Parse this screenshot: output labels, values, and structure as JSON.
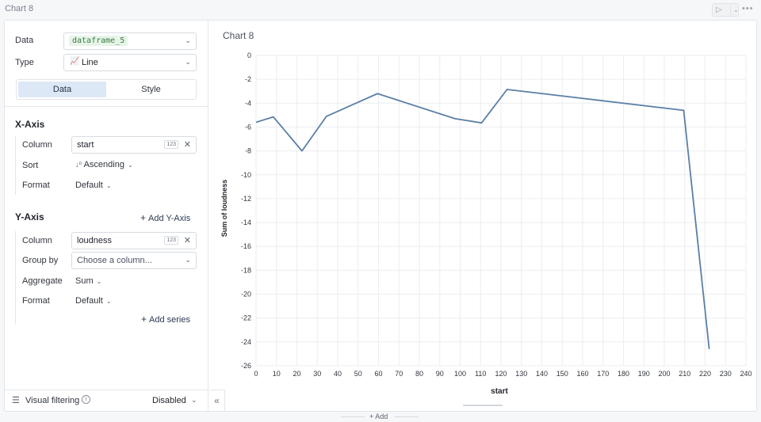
{
  "cell": {
    "title": "Chart 8"
  },
  "config": {
    "data_label": "Data",
    "data_value": "dataframe_5",
    "type_label": "Type",
    "type_value": "Line",
    "tabs": [
      {
        "label": "Data"
      },
      {
        "label": "Style"
      }
    ]
  },
  "x_axis": {
    "title": "X-Axis",
    "column_label": "Column",
    "column_value": "start",
    "column_type_badge": "123",
    "sort_label": "Sort",
    "sort_value": "Ascending",
    "format_label": "Format",
    "format_value": "Default"
  },
  "y_axis": {
    "title": "Y-Axis",
    "add_label": "Add Y-Axis",
    "column_label": "Column",
    "column_value": "loudness",
    "column_type_badge": "123",
    "group_label": "Group by",
    "group_placeholder": "Choose a column...",
    "aggregate_label": "Aggregate",
    "aggregate_value": "Sum",
    "format_label": "Format",
    "format_value": "Default",
    "add_series_label": "Add series"
  },
  "visual_filtering": {
    "label": "Visual filtering",
    "value": "Disabled"
  },
  "add_cell": {
    "label": "Add"
  },
  "colors": {
    "series": "#5b7fa6",
    "accent": "#dde8f6"
  },
  "chart_data": {
    "type": "line",
    "title": "Chart 8",
    "xlabel": "start",
    "ylabel": "Sum of loudness",
    "xlim": [
      0,
      240
    ],
    "ylim": [
      -26,
      0
    ],
    "x_ticks": [
      0,
      10,
      20,
      30,
      40,
      50,
      60,
      70,
      80,
      90,
      100,
      110,
      120,
      130,
      140,
      150,
      160,
      170,
      180,
      190,
      200,
      210,
      220,
      230,
      240
    ],
    "y_ticks": [
      0,
      -2,
      -4,
      -6,
      -8,
      -10,
      -12,
      -14,
      -16,
      -18,
      -20,
      -22,
      -24,
      -26
    ],
    "grid": true,
    "series": [
      {
        "x": [
          0,
          8.5,
          22.5,
          34.5,
          59.5,
          97.5,
          110.5,
          123,
          160,
          209.5,
          222
        ],
        "values": [
          -5.6,
          -5.15,
          -8.0,
          -5.1,
          -3.2,
          -5.3,
          -5.65,
          -2.85,
          -3.6,
          -4.6,
          -24.6
        ]
      }
    ]
  }
}
